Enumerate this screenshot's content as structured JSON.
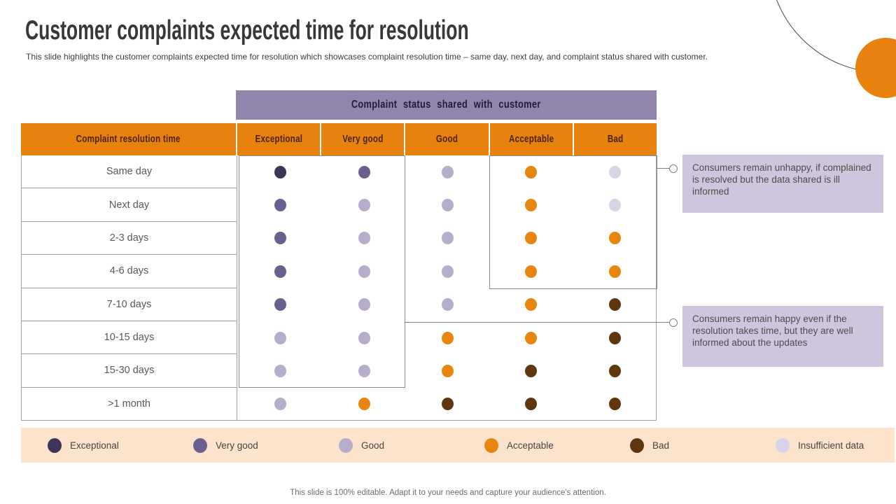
{
  "title": "Customer complaints expected time for resolution",
  "subtitle": "This slide highlights the customer complaints expected time for resolution which showcases complaint resolution time – same day, next day,  and complaint status shared with customer.",
  "footer": "This slide is 100% editable. Adapt it to your needs and capture your audience's attention.",
  "colors": {
    "exceptional": "#3f3557",
    "very_good": "#6a5f8e",
    "good": "#b5adc9",
    "acceptable": "#e8850f",
    "bad": "#5f370e",
    "insufficient": "#d8d3e6",
    "header_orange": "#e8820e",
    "banner_purple": "#9184ad",
    "callout_bg": "#cdc6dc",
    "legend_bg": "#fce3cb",
    "accent_circle": "#e8820e"
  },
  "table": {
    "banner": "Complaint status shared with customer",
    "row_header": "Complaint resolution time",
    "columns": [
      "Exceptional",
      "Very good",
      "Good",
      "Acceptable",
      "Bad"
    ],
    "rows": [
      {
        "label": "Same day",
        "ratings": [
          "exceptional",
          "very_good",
          "good",
          "acceptable",
          "insufficient"
        ]
      },
      {
        "label": "Next day",
        "ratings": [
          "very_good",
          "good",
          "good",
          "acceptable",
          "insufficient"
        ]
      },
      {
        "label": "2-3 days",
        "ratings": [
          "very_good",
          "good",
          "good",
          "acceptable",
          "acceptable"
        ]
      },
      {
        "label": "4-6 days",
        "ratings": [
          "very_good",
          "good",
          "good",
          "acceptable",
          "acceptable"
        ]
      },
      {
        "label": "7-10 days",
        "ratings": [
          "very_good",
          "good",
          "good",
          "acceptable",
          "bad"
        ]
      },
      {
        "label": "10-15 days",
        "ratings": [
          "good",
          "good",
          "acceptable",
          "acceptable",
          "bad"
        ]
      },
      {
        "label": "15-30 days",
        "ratings": [
          "good",
          "good",
          "acceptable",
          "bad",
          "bad"
        ]
      },
      {
        "label": ">1 month",
        "ratings": [
          "good",
          "acceptable",
          "bad",
          "bad",
          "bad"
        ]
      }
    ]
  },
  "callouts": [
    {
      "text": "Consumers remain unhappy, if complained is resolved but the data shared is ill informed"
    },
    {
      "text": "Consumers remain happy even if the resolution takes time, but they are well informed about the updates"
    }
  ],
  "legend": [
    {
      "label": "Exceptional",
      "rating": "exceptional"
    },
    {
      "label": "Very good",
      "rating": "very_good"
    },
    {
      "label": "Good",
      "rating": "good"
    },
    {
      "label": "Acceptable",
      "rating": "acceptable"
    },
    {
      "label": "Bad",
      "rating": "bad"
    },
    {
      "label": "Insufficient data",
      "rating": "insufficient"
    }
  ],
  "chart_data": {
    "type": "heatmap",
    "title": "Complaint status shared with customer",
    "xlabel": "Complaint status shared with customer",
    "ylabel": "Complaint resolution time",
    "columns": [
      "Exceptional",
      "Very good",
      "Good",
      "Acceptable",
      "Bad"
    ],
    "rows": [
      "Same day",
      "Next day",
      "2-3 days",
      "4-6 days",
      "7-10 days",
      "10-15 days",
      "15-30 days",
      ">1 month"
    ],
    "values": [
      [
        "Exceptional",
        "Very good",
        "Good",
        "Acceptable",
        "Insufficient data"
      ],
      [
        "Very good",
        "Good",
        "Good",
        "Acceptable",
        "Insufficient data"
      ],
      [
        "Very good",
        "Good",
        "Good",
        "Acceptable",
        "Acceptable"
      ],
      [
        "Very good",
        "Good",
        "Good",
        "Acceptable",
        "Acceptable"
      ],
      [
        "Very good",
        "Good",
        "Good",
        "Acceptable",
        "Bad"
      ],
      [
        "Good",
        "Good",
        "Acceptable",
        "Acceptable",
        "Bad"
      ],
      [
        "Good",
        "Good",
        "Acceptable",
        "Bad",
        "Bad"
      ],
      [
        "Good",
        "Acceptable",
        "Bad",
        "Bad",
        "Bad"
      ]
    ],
    "legend_entries": [
      "Exceptional",
      "Very good",
      "Good",
      "Acceptable",
      "Bad",
      "Insufficient data"
    ],
    "legend_position": "bottom",
    "grid": false
  }
}
